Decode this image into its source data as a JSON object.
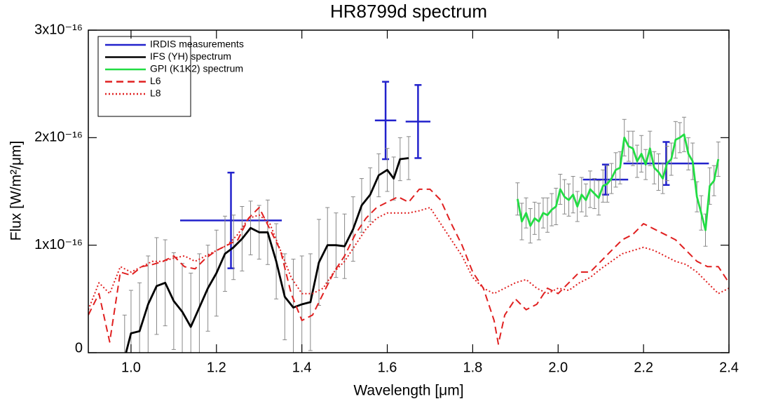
{
  "chart_data": {
    "type": "line",
    "title": "HR8799d spectrum",
    "xlabel": "Wavelength [μm]",
    "ylabel": "Flux [W/m²/μm]",
    "xlim": [
      0.9,
      2.4
    ],
    "ylim": [
      0,
      3e-16
    ],
    "xticks": [
      {
        "value": 1,
        "label": "1.0"
      },
      1.2,
      1.4,
      1.6,
      1.8,
      {
        "value": 2,
        "label": "2.0"
      },
      2.2,
      2.4
    ],
    "yticks": [
      0,
      {
        "value": 1e-16,
        "label": "1x10⁻¹⁶"
      },
      {
        "value": 2e-16,
        "label": "2x10⁻¹⁶"
      },
      {
        "value": 3e-16,
        "label": "3x10⁻¹⁶"
      }
    ],
    "legend": "upper left",
    "series": [
      {
        "name": "IRDIS measurements",
        "color": "#2222cc",
        "style": "errorcross",
        "x": [
          1.234,
          1.596,
          1.672,
          2.111,
          2.253
        ],
        "xerr": [
          0.119,
          0.025,
          0.029,
          0.053,
          0.1
        ],
        "values": [
          1.23e-16,
          2.16e-16,
          2.15e-16,
          1.61e-16,
          1.76e-16
        ],
        "errors": [
          4.45e-17,
          3.6e-17,
          3.4e-17,
          1.4e-17,
          2e-17
        ]
      },
      {
        "name": "IFS (YH) spectrum",
        "color": "#000000",
        "style": "solid",
        "error_color": "#888888",
        "x": [
          0.985,
          1.0,
          1.02,
          1.04,
          1.06,
          1.08,
          1.1,
          1.12,
          1.14,
          1.16,
          1.18,
          1.2,
          1.22,
          1.24,
          1.26,
          1.28,
          1.3,
          1.32,
          1.34,
          1.36,
          1.38,
          1.4,
          1.42,
          1.44,
          1.46,
          1.48,
          1.5,
          1.52,
          1.54,
          1.56,
          1.58,
          1.6,
          1.615,
          1.63,
          1.65
        ],
        "values": [
          -5e-18,
          1.8e-17,
          2e-17,
          4.5e-17,
          6.2e-17,
          6.5e-17,
          4.8e-17,
          3.8e-17,
          2.4e-17,
          4.2e-17,
          6e-17,
          7.4e-17,
          9.2e-17,
          9.8e-17,
          1.06e-16,
          1.16e-16,
          1.12e-16,
          1.12e-16,
          8.5e-17,
          5.2e-17,
          4.2e-17,
          4.5e-17,
          4.7e-17,
          8.4e-17,
          1e-16,
          1e-16,
          9.9e-17,
          1.15e-16,
          1.37e-16,
          1.47e-16,
          1.65e-16,
          1.7e-16,
          1.62e-16,
          1.8e-16,
          1.81e-16
        ],
        "errors": [
          4e-17,
          4e-17,
          4.5e-17,
          4.5e-17,
          4.5e-17,
          4e-17,
          4.5e-17,
          4.5e-17,
          5e-17,
          5e-17,
          4e-17,
          4e-17,
          3.5e-17,
          3e-17,
          3e-17,
          2.5e-17,
          2.5e-17,
          3e-17,
          3.5e-17,
          4e-17,
          4.5e-17,
          4.5e-17,
          4.5e-17,
          4e-17,
          3.5e-17,
          3e-17,
          3e-17,
          3e-17,
          2.5e-17,
          2.5e-17,
          2e-17,
          2e-17,
          2e-17,
          2e-17,
          2e-17
        ]
      },
      {
        "name": "GPI (K1K2) spectrum",
        "color": "#22dd44",
        "style": "solid",
        "error_color": "#888888",
        "x": [
          1.905,
          1.915,
          1.925,
          1.935,
          1.945,
          1.955,
          1.965,
          1.975,
          1.985,
          1.995,
          2.005,
          2.015,
          2.025,
          2.035,
          2.045,
          2.055,
          2.065,
          2.075,
          2.085,
          2.095,
          2.105,
          2.115,
          2.125,
          2.135,
          2.145,
          2.155,
          2.165,
          2.175,
          2.185,
          2.195,
          2.205,
          2.215,
          2.225,
          2.235,
          2.245,
          2.255,
          2.265,
          2.275,
          2.285,
          2.295,
          2.305,
          2.315,
          2.325,
          2.335,
          2.345,
          2.355,
          2.365,
          2.375
        ],
        "values": [
          1.43e-16,
          1.22e-16,
          1.3e-16,
          1.18e-16,
          1.25e-16,
          1.22e-16,
          1.3e-16,
          1.28e-16,
          1.33e-16,
          1.36e-16,
          1.52e-16,
          1.45e-16,
          1.42e-16,
          1.47e-16,
          1.36e-16,
          1.47e-16,
          1.42e-16,
          1.52e-16,
          1.48e-16,
          1.44e-16,
          1.55e-16,
          1.57e-16,
          1.62e-16,
          1.7e-16,
          1.72e-16,
          2e-16,
          1.92e-16,
          1.9e-16,
          1.78e-16,
          1.85e-16,
          1.75e-16,
          1.9e-16,
          1.72e-16,
          1.68e-16,
          1.62e-16,
          1.76e-16,
          1.8e-16,
          1.98e-16,
          2e-16,
          2.03e-16,
          1.85e-16,
          1.78e-16,
          1.45e-16,
          1.3e-16,
          1.14e-16,
          1.55e-16,
          1.6e-16,
          1.8e-16
        ],
        "errors": [
          1.5e-17,
          1.7e-17,
          1.4e-17,
          1.6e-17,
          1.5e-17,
          1.7e-17,
          1.4e-17,
          1.6e-17,
          1.5e-17,
          1.7e-17,
          1.4e-17,
          1.6e-17,
          1.5e-17,
          1.7e-17,
          1.4e-17,
          1.6e-17,
          1.5e-17,
          1.7e-17,
          1.4e-17,
          1.6e-17,
          1.5e-17,
          1.7e-17,
          1.4e-17,
          1.6e-17,
          1.5e-17,
          1.7e-17,
          1.4e-17,
          1.6e-17,
          1.5e-17,
          1.7e-17,
          1.4e-17,
          1.6e-17,
          1.5e-17,
          1.7e-17,
          1.4e-17,
          1.6e-17,
          1.5e-17,
          1.7e-17,
          1.4e-17,
          1.6e-17,
          1.5e-17,
          1.7e-17,
          1.4e-17,
          1.6e-17,
          1.5e-17,
          1.7e-17,
          1.4e-17,
          1.6e-17
        ]
      },
      {
        "name": "L6",
        "color": "#e02020",
        "style": "dashed",
        "x": [
          0.9,
          0.925,
          0.95,
          0.975,
          1.0,
          1.025,
          1.05,
          1.075,
          1.1,
          1.125,
          1.15,
          1.175,
          1.2,
          1.225,
          1.25,
          1.275,
          1.3,
          1.325,
          1.35,
          1.375,
          1.4,
          1.425,
          1.45,
          1.475,
          1.5,
          1.525,
          1.55,
          1.575,
          1.6,
          1.625,
          1.65,
          1.675,
          1.7,
          1.725,
          1.75,
          1.775,
          1.8,
          1.825,
          1.85,
          1.86,
          1.875,
          1.9,
          1.925,
          1.95,
          1.975,
          2.0,
          2.025,
          2.05,
          2.075,
          2.1,
          2.125,
          2.15,
          2.175,
          2.2,
          2.225,
          2.25,
          2.275,
          2.3,
          2.325,
          2.35,
          2.375,
          2.4
        ],
        "values": [
          3.5e-17,
          5.5e-17,
          1e-17,
          7.5e-17,
          7.2e-17,
          8e-17,
          8.2e-17,
          8.5e-17,
          9e-17,
          8e-17,
          7.8e-17,
          8.8e-17,
          9.5e-17,
          1e-16,
          1.05e-16,
          1.25e-16,
          1.35e-16,
          1.15e-16,
          9.5e-17,
          5.5e-17,
          3e-17,
          3.5e-17,
          5.5e-17,
          7.5e-17,
          9e-17,
          1.1e-16,
          1.25e-16,
          1.35e-16,
          1.4e-16,
          1.45e-16,
          1.4e-16,
          1.52e-16,
          1.52e-16,
          1.42e-16,
          1.2e-16,
          1e-16,
          7.5e-17,
          6e-17,
          3e-17,
          8e-18,
          3.5e-17,
          5e-17,
          4e-17,
          4.5e-17,
          6e-17,
          5.5e-17,
          6.5e-17,
          7.5e-17,
          7.5e-17,
          8.5e-17,
          9.5e-17,
          1.05e-16,
          1.1e-16,
          1.2e-16,
          1.15e-16,
          1.1e-16,
          1.05e-16,
          9.5e-17,
          8.5e-17,
          8e-17,
          8e-17,
          6.5e-17
        ]
      },
      {
        "name": "L8",
        "color": "#e02020",
        "style": "dotted",
        "x": [
          0.9,
          0.925,
          0.95,
          0.975,
          1.0,
          1.025,
          1.05,
          1.075,
          1.1,
          1.125,
          1.15,
          1.175,
          1.2,
          1.225,
          1.25,
          1.275,
          1.3,
          1.325,
          1.35,
          1.375,
          1.4,
          1.425,
          1.45,
          1.475,
          1.5,
          1.525,
          1.55,
          1.575,
          1.6,
          1.625,
          1.65,
          1.675,
          1.7,
          1.725,
          1.75,
          1.775,
          1.8,
          1.825,
          1.85,
          1.875,
          1.9,
          1.925,
          1.95,
          1.975,
          2.0,
          2.025,
          2.05,
          2.075,
          2.1,
          2.125,
          2.15,
          2.175,
          2.2,
          2.225,
          2.25,
          2.275,
          2.3,
          2.325,
          2.35,
          2.375,
          2.4
        ],
        "values": [
          4e-17,
          6.5e-17,
          5.5e-17,
          8e-17,
          7.5e-17,
          8e-17,
          8.5e-17,
          8.5e-17,
          8.8e-17,
          9e-17,
          8.5e-17,
          9e-17,
          9.5e-17,
          1e-16,
          1.1e-16,
          1.25e-16,
          1.28e-16,
          1.2e-16,
          9.5e-17,
          7e-17,
          5.5e-17,
          5.5e-17,
          6e-17,
          7.5e-17,
          8.5e-17,
          1e-16,
          1.15e-16,
          1.25e-16,
          1.3e-16,
          1.3e-16,
          1.3e-16,
          1.32e-16,
          1.35e-16,
          1.2e-16,
          1.05e-16,
          9e-17,
          7e-17,
          6e-17,
          5.5e-17,
          6e-17,
          6.5e-17,
          6.8e-17,
          6e-17,
          5.5e-17,
          6e-17,
          5.8e-17,
          6.5e-17,
          7e-17,
          7.8e-17,
          8.5e-17,
          9.2e-17,
          9.5e-17,
          9.8e-17,
          9.5e-17,
          9e-17,
          8.5e-17,
          8.2e-17,
          7.5e-17,
          6.5e-17,
          5.5e-17,
          6e-17
        ]
      }
    ]
  }
}
